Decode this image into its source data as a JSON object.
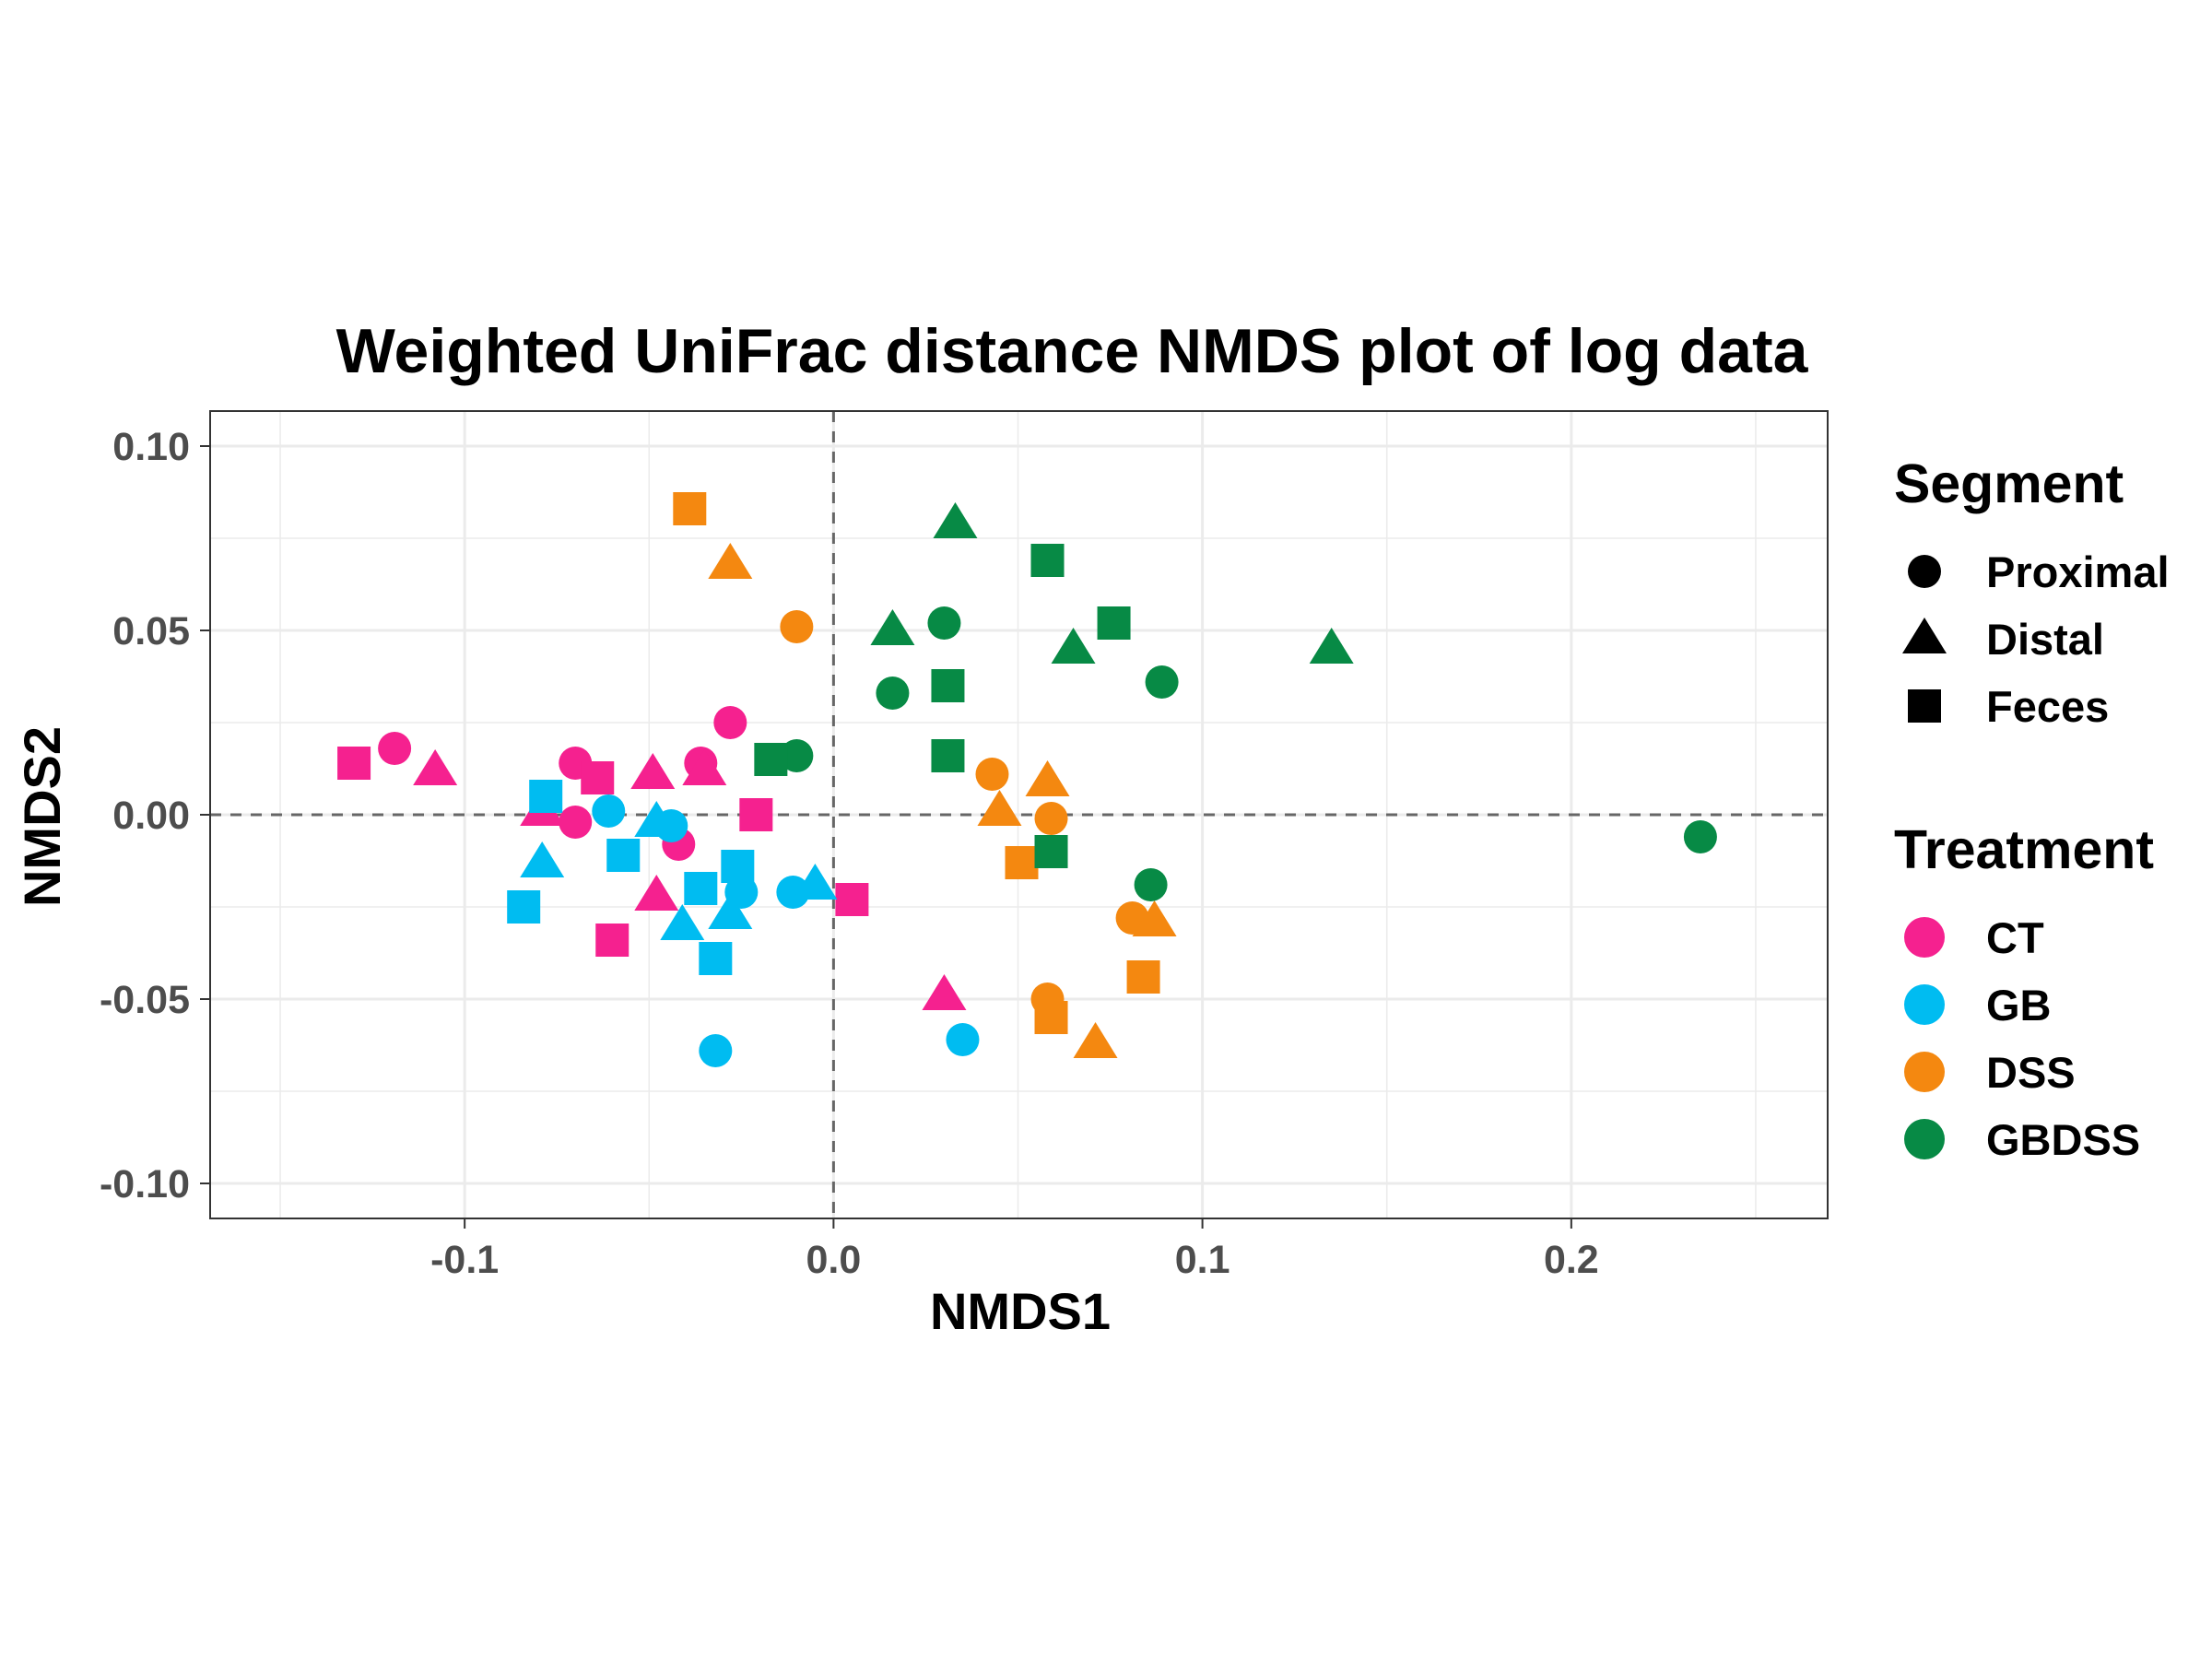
{
  "chart_data": {
    "type": "scatter",
    "title": "Weighted UniFrac distance NMDS plot of log data",
    "xlabel": "NMDS1",
    "ylabel": "NMDS2",
    "xlim": [
      -0.169,
      0.2695
    ],
    "ylim": [
      -0.1095,
      0.1095
    ],
    "x_ticks": [
      -0.1,
      0.0,
      0.1,
      0.2
    ],
    "x_tick_labels": [
      "-0.1",
      "0.0",
      "0.1",
      "0.2"
    ],
    "y_ticks": [
      0.1,
      0.05,
      0.0,
      -0.05,
      -0.1
    ],
    "y_tick_labels": [
      "0.10",
      "0.05",
      "0.00",
      "-0.05",
      "-0.10"
    ],
    "grid": true,
    "reference_lines": {
      "x": 0,
      "y": 0,
      "style": "dashed"
    },
    "legend_position": "right",
    "legend": {
      "segment": {
        "title": "Segment",
        "items": [
          {
            "label": "Proximal",
            "shape": "circle"
          },
          {
            "label": "Distal",
            "shape": "triangle"
          },
          {
            "label": "Feces",
            "shape": "square"
          }
        ]
      },
      "treatment": {
        "title": "Treatment",
        "items": [
          {
            "label": "CT",
            "color": "#f5218f"
          },
          {
            "label": "GB",
            "color": "#00bcf1"
          },
          {
            "label": "DSS",
            "color": "#f48810"
          },
          {
            "label": "GBDSS",
            "color": "#078a45"
          }
        ]
      }
    },
    "points": [
      {
        "treatment": "CT",
        "segment": "Proximal",
        "x": -0.119,
        "y": 0.018
      },
      {
        "treatment": "CT",
        "segment": "Proximal",
        "x": -0.07,
        "y": 0.014
      },
      {
        "treatment": "CT",
        "segment": "Proximal",
        "x": -0.07,
        "y": -0.002
      },
      {
        "treatment": "CT",
        "segment": "Proximal",
        "x": -0.036,
        "y": 0.014
      },
      {
        "treatment": "CT",
        "segment": "Proximal",
        "x": -0.028,
        "y": 0.025
      },
      {
        "treatment": "CT",
        "segment": "Proximal",
        "x": -0.042,
        "y": -0.008
      },
      {
        "treatment": "CT",
        "segment": "Distal",
        "x": -0.108,
        "y": 0.012
      },
      {
        "treatment": "CT",
        "segment": "Distal",
        "x": -0.079,
        "y": 0.001
      },
      {
        "treatment": "CT",
        "segment": "Distal",
        "x": -0.049,
        "y": 0.011
      },
      {
        "treatment": "CT",
        "segment": "Distal",
        "x": -0.035,
        "y": 0.012
      },
      {
        "treatment": "CT",
        "segment": "Distal",
        "x": -0.048,
        "y": -0.022
      },
      {
        "treatment": "CT",
        "segment": "Distal",
        "x": 0.03,
        "y": -0.049
      },
      {
        "treatment": "CT",
        "segment": "Feces",
        "x": -0.13,
        "y": 0.014
      },
      {
        "treatment": "CT",
        "segment": "Feces",
        "x": -0.064,
        "y": 0.01
      },
      {
        "treatment": "CT",
        "segment": "Feces",
        "x": -0.06,
        "y": -0.034
      },
      {
        "treatment": "CT",
        "segment": "Feces",
        "x": -0.021,
        "y": 0.0
      },
      {
        "treatment": "CT",
        "segment": "Feces",
        "x": 0.005,
        "y": -0.023
      },
      {
        "treatment": "GB",
        "segment": "Proximal",
        "x": -0.061,
        "y": 0.001
      },
      {
        "treatment": "GB",
        "segment": "Proximal",
        "x": -0.044,
        "y": -0.003
      },
      {
        "treatment": "GB",
        "segment": "Proximal",
        "x": -0.025,
        "y": -0.021
      },
      {
        "treatment": "GB",
        "segment": "Proximal",
        "x": -0.011,
        "y": -0.021
      },
      {
        "treatment": "GB",
        "segment": "Proximal",
        "x": -0.032,
        "y": -0.064
      },
      {
        "treatment": "GB",
        "segment": "Proximal",
        "x": 0.035,
        "y": -0.061
      },
      {
        "treatment": "GB",
        "segment": "Distal",
        "x": -0.079,
        "y": -0.013
      },
      {
        "treatment": "GB",
        "segment": "Distal",
        "x": -0.048,
        "y": -0.002
      },
      {
        "treatment": "GB",
        "segment": "Distal",
        "x": -0.041,
        "y": -0.03
      },
      {
        "treatment": "GB",
        "segment": "Distal",
        "x": -0.028,
        "y": -0.027
      },
      {
        "treatment": "GB",
        "segment": "Distal",
        "x": -0.005,
        "y": -0.019
      },
      {
        "treatment": "GB",
        "segment": "Feces",
        "x": -0.078,
        "y": 0.005
      },
      {
        "treatment": "GB",
        "segment": "Feces",
        "x": -0.084,
        "y": -0.025
      },
      {
        "treatment": "GB",
        "segment": "Feces",
        "x": -0.057,
        "y": -0.011
      },
      {
        "treatment": "GB",
        "segment": "Feces",
        "x": -0.036,
        "y": -0.02
      },
      {
        "treatment": "GB",
        "segment": "Feces",
        "x": -0.026,
        "y": -0.014
      },
      {
        "treatment": "GB",
        "segment": "Feces",
        "x": -0.032,
        "y": -0.039
      },
      {
        "treatment": "DSS",
        "segment": "Proximal",
        "x": -0.01,
        "y": 0.051
      },
      {
        "treatment": "DSS",
        "segment": "Proximal",
        "x": 0.043,
        "y": 0.011
      },
      {
        "treatment": "DSS",
        "segment": "Proximal",
        "x": 0.059,
        "y": -0.001
      },
      {
        "treatment": "DSS",
        "segment": "Proximal",
        "x": 0.081,
        "y": -0.028
      },
      {
        "treatment": "DSS",
        "segment": "Proximal",
        "x": 0.058,
        "y": -0.05
      },
      {
        "treatment": "DSS",
        "segment": "Distal",
        "x": -0.028,
        "y": 0.068
      },
      {
        "treatment": "DSS",
        "segment": "Distal",
        "x": 0.045,
        "y": 0.001
      },
      {
        "treatment": "DSS",
        "segment": "Distal",
        "x": 0.058,
        "y": 0.009
      },
      {
        "treatment": "DSS",
        "segment": "Distal",
        "x": 0.087,
        "y": -0.029
      },
      {
        "treatment": "DSS",
        "segment": "Distal",
        "x": 0.071,
        "y": -0.062
      },
      {
        "treatment": "DSS",
        "segment": "Feces",
        "x": -0.039,
        "y": 0.083
      },
      {
        "treatment": "DSS",
        "segment": "Feces",
        "x": 0.051,
        "y": -0.013
      },
      {
        "treatment": "DSS",
        "segment": "Feces",
        "x": 0.084,
        "y": -0.044
      },
      {
        "treatment": "DSS",
        "segment": "Feces",
        "x": 0.059,
        "y": -0.055
      },
      {
        "treatment": "GBDSS",
        "segment": "Proximal",
        "x": -0.01,
        "y": 0.016
      },
      {
        "treatment": "GBDSS",
        "segment": "Proximal",
        "x": 0.016,
        "y": 0.033
      },
      {
        "treatment": "GBDSS",
        "segment": "Proximal",
        "x": 0.03,
        "y": 0.052
      },
      {
        "treatment": "GBDSS",
        "segment": "Proximal",
        "x": 0.089,
        "y": 0.036
      },
      {
        "treatment": "GBDSS",
        "segment": "Proximal",
        "x": 0.086,
        "y": -0.019
      },
      {
        "treatment": "GBDSS",
        "segment": "Proximal",
        "x": 0.235,
        "y": -0.006
      },
      {
        "treatment": "GBDSS",
        "segment": "Distal",
        "x": 0.016,
        "y": 0.05
      },
      {
        "treatment": "GBDSS",
        "segment": "Distal",
        "x": 0.033,
        "y": 0.079
      },
      {
        "treatment": "GBDSS",
        "segment": "Distal",
        "x": 0.065,
        "y": 0.045
      },
      {
        "treatment": "GBDSS",
        "segment": "Distal",
        "x": 0.135,
        "y": 0.045
      },
      {
        "treatment": "GBDSS",
        "segment": "Feces",
        "x": -0.017,
        "y": 0.015
      },
      {
        "treatment": "GBDSS",
        "segment": "Feces",
        "x": 0.031,
        "y": 0.035
      },
      {
        "treatment": "GBDSS",
        "segment": "Feces",
        "x": 0.031,
        "y": 0.016
      },
      {
        "treatment": "GBDSS",
        "segment": "Feces",
        "x": 0.058,
        "y": 0.069
      },
      {
        "treatment": "GBDSS",
        "segment": "Feces",
        "x": 0.076,
        "y": 0.052
      },
      {
        "treatment": "GBDSS",
        "segment": "Feces",
        "x": 0.059,
        "y": -0.01
      }
    ]
  }
}
